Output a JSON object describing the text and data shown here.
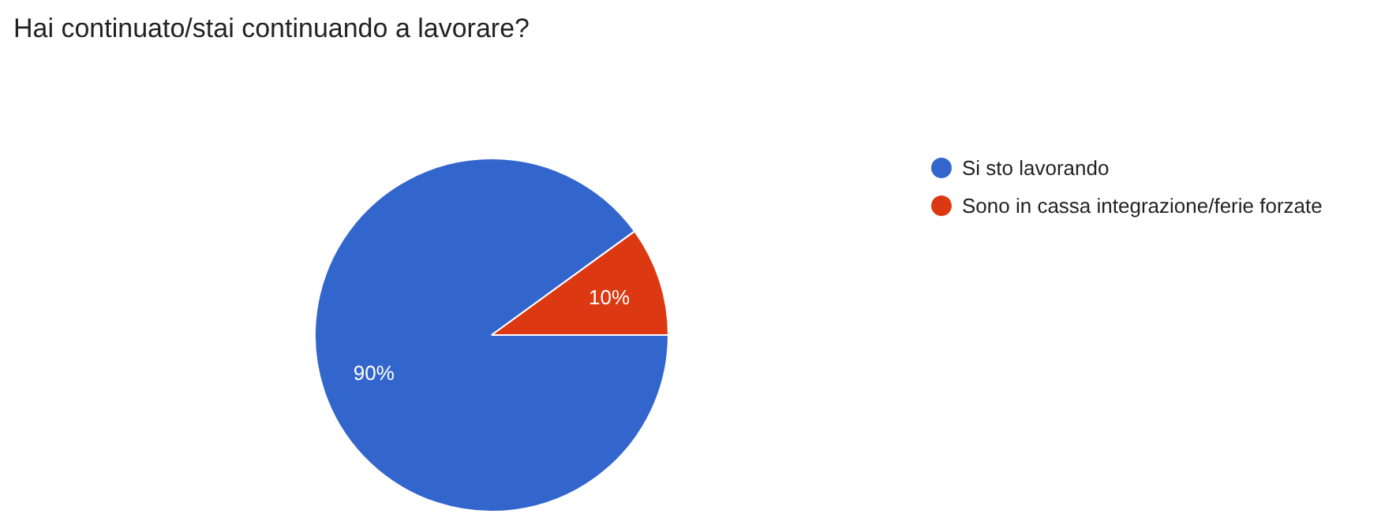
{
  "chart_data": {
    "type": "pie",
    "title": "Hai continuato/stai continuando a lavorare?",
    "categories": [
      "Si sto lavorando",
      "Sono in cassa integrazione/ferie forzate"
    ],
    "values": [
      90,
      10
    ],
    "colors": [
      "#3366cc",
      "#dc3912"
    ],
    "value_labels": [
      "90%",
      "10%"
    ],
    "legend": "right"
  }
}
